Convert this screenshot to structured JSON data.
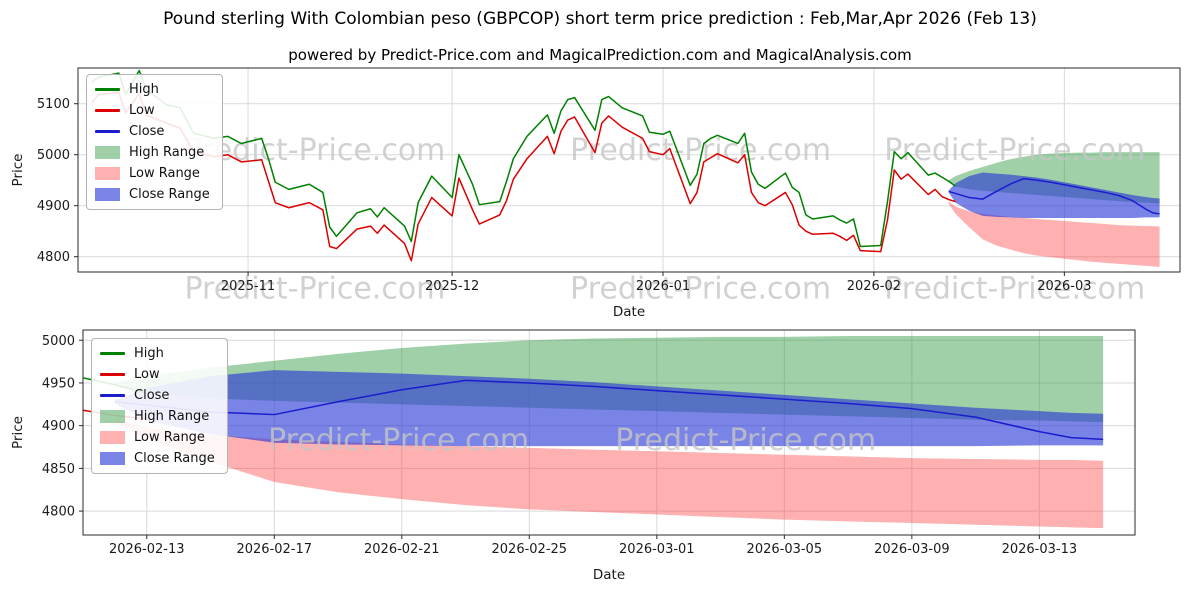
{
  "page": {
    "title": "Pound sterling With Colombian peso (GBPCOP) short term price prediction : Feb,Mar,Apr 2026 (Feb 13)",
    "subtitle": "powered by Predict-Price.com and MagicalPrediction.com and MagicalAnalysis.com",
    "watermark": "Predict-Price.com"
  },
  "colors": {
    "high": "#008000",
    "low": "#dd0000",
    "close": "#1c1ccf",
    "high_range": "rgba(45,150,60,0.45)",
    "low_range": "rgba(255,60,60,0.40)",
    "close_range": "rgba(40,55,215,0.62)",
    "grid": "#d9d9d9",
    "axis": "#2a2a2a",
    "text": "#1a1a1a",
    "watermark": "#c6c6c6"
  },
  "legend": {
    "items": [
      {
        "label": "High",
        "swatch": "line",
        "color": "high"
      },
      {
        "label": "Low",
        "swatch": "line",
        "color": "low"
      },
      {
        "label": "Close",
        "swatch": "line",
        "color": "close"
      },
      {
        "label": "High Range",
        "swatch": "patch",
        "color": "high_range"
      },
      {
        "label": "Low Range",
        "swatch": "patch",
        "color": "low_range"
      },
      {
        "label": "Close Range",
        "swatch": "patch",
        "color": "close_range"
      }
    ]
  },
  "watermarks": {
    "top": [
      {
        "xf": 0.215,
        "yf": 0.45
      },
      {
        "xf": 0.565,
        "yf": 0.45
      },
      {
        "xf": 0.85,
        "yf": 0.45
      },
      {
        "xf": 0.215,
        "yf": 1.13
      },
      {
        "xf": 0.565,
        "yf": 1.13
      },
      {
        "xf": 0.85,
        "yf": 1.13
      }
    ],
    "bottom": [
      {
        "xf": 0.3,
        "yf": 0.585
      },
      {
        "xf": 0.63,
        "yf": 0.585
      }
    ]
  },
  "chart_data": [
    {
      "type": "line",
      "name": "history-and-forecast",
      "title": "",
      "xlabel": "Date",
      "ylabel": "Price",
      "grid": true,
      "legend_position": "upper-left",
      "xlim": [
        "2025-10-07",
        "2026-03-18"
      ],
      "ylim": [
        4770,
        5170
      ],
      "x_ticks": [
        "2025-11",
        "2025-12",
        "2026-01",
        "2026-02",
        "2026-03"
      ],
      "y_ticks": [
        4800,
        4900,
        5000,
        5100
      ],
      "historical": {
        "dates": [
          "2025-10-09",
          "2025-10-10",
          "2025-10-13",
          "2025-10-14",
          "2025-10-16",
          "2025-10-17",
          "2025-10-20",
          "2025-10-22",
          "2025-10-24",
          "2025-10-27",
          "2025-10-29",
          "2025-10-31",
          "2025-11-03",
          "2025-11-04",
          "2025-11-05",
          "2025-11-07",
          "2025-11-10",
          "2025-11-12",
          "2025-11-13",
          "2025-11-14",
          "2025-11-17",
          "2025-11-19",
          "2025-11-20",
          "2025-11-21",
          "2025-11-24",
          "2025-11-25",
          "2025-11-26",
          "2025-11-28",
          "2025-12-01",
          "2025-12-02",
          "2025-12-04",
          "2025-12-05",
          "2025-12-08",
          "2025-12-09",
          "2025-12-10",
          "2025-12-12",
          "2025-12-15",
          "2025-12-16",
          "2025-12-17",
          "2025-12-18",
          "2025-12-19",
          "2025-12-22",
          "2025-12-23",
          "2025-12-24",
          "2025-12-26",
          "2025-12-29",
          "2025-12-30",
          "2026-01-01",
          "2026-01-02",
          "2026-01-05",
          "2026-01-06",
          "2026-01-07",
          "2026-01-08",
          "2026-01-09",
          "2026-01-12",
          "2026-01-13",
          "2026-01-14",
          "2026-01-15",
          "2026-01-16",
          "2026-01-19",
          "2026-01-20",
          "2026-01-21",
          "2026-01-22",
          "2026-01-23",
          "2026-01-26",
          "2026-01-27",
          "2026-01-28",
          "2026-01-29",
          "2026-01-30",
          "2026-02-02",
          "2026-02-03",
          "2026-02-04",
          "2026-02-05",
          "2026-02-06",
          "2026-02-09",
          "2026-02-10",
          "2026-02-11",
          "2026-02-12",
          "2026-02-13"
        ],
        "high": [
          5142,
          5152,
          5160,
          5118,
          5165,
          5128,
          5098,
          5092,
          5042,
          5032,
          5036,
          5022,
          5032,
          4992,
          4946,
          4932,
          4942,
          4926,
          4858,
          4840,
          4886,
          4894,
          4878,
          4896,
          4860,
          4830,
          4906,
          4958,
          4916,
          5000,
          4942,
          4902,
          4908,
          4948,
          4992,
          5036,
          5078,
          5042,
          5086,
          5108,
          5112,
          5048,
          5108,
          5114,
          5092,
          5076,
          5044,
          5040,
          5046,
          4940,
          4962,
          5022,
          5032,
          5038,
          5022,
          5042,
          4966,
          4942,
          4934,
          4964,
          4936,
          4926,
          4882,
          4874,
          4880,
          4872,
          4866,
          4874,
          4820,
          4822,
          4908,
          5006,
          4992,
          5004,
          4960,
          4964,
          4956,
          4948,
          4938
        ],
        "low": [
          5102,
          5118,
          5122,
          5082,
          5120,
          5078,
          5062,
          5052,
          5006,
          4996,
          5000,
          4986,
          4990,
          4948,
          4906,
          4896,
          4906,
          4892,
          4820,
          4816,
          4854,
          4860,
          4846,
          4862,
          4826,
          4792,
          4864,
          4916,
          4880,
          4954,
          4892,
          4864,
          4882,
          4910,
          4952,
          4992,
          5036,
          5002,
          5046,
          5068,
          5074,
          5004,
          5062,
          5076,
          5054,
          5032,
          5006,
          5000,
          5012,
          4904,
          4926,
          4986,
          4994,
          5002,
          4984,
          5000,
          4926,
          4906,
          4900,
          4926,
          4902,
          4862,
          4850,
          4844,
          4846,
          4840,
          4832,
          4842,
          4812,
          4810,
          4872,
          4970,
          4952,
          4962,
          4922,
          4932,
          4918,
          4912,
          4908
        ]
      },
      "prediction": {
        "dates": [
          "2026-02-12",
          "2026-02-13",
          "2026-02-15",
          "2026-02-17",
          "2026-02-19",
          "2026-02-21",
          "2026-02-23",
          "2026-02-25",
          "2026-02-27",
          "2026-03-01",
          "2026-03-03",
          "2026-03-05",
          "2026-03-07",
          "2026-03-09",
          "2026-03-11",
          "2026-03-13",
          "2026-03-14",
          "2026-03-15"
        ],
        "close": [
          4928,
          4924,
          4916,
          4913,
          4928,
          4942,
          4953,
          4950,
          4946,
          4941,
          4936,
          4931,
          4926,
          4920,
          4910,
          4893,
          4886,
          4884
        ],
        "high_range": {
          "upper": [
            4950,
            4958,
            4968,
            4976,
            4984,
            4991,
            4996,
            5000,
            5002,
            5003,
            5004,
            5004,
            5005,
            5005,
            5005,
            5005,
            5005,
            5005
          ],
          "lower": [
            4946,
            4938,
            4932,
            4929,
            4927,
            4925,
            4923,
            4921,
            4919,
            4917,
            4915,
            4913,
            4911,
            4909,
            4907,
            4906,
            4905,
            4904
          ]
        },
        "low_range": {
          "upper": [
            4908,
            4898,
            4889,
            4884,
            4881,
            4878,
            4876,
            4874,
            4872,
            4870,
            4868,
            4866,
            4864,
            4862,
            4861,
            4860,
            4860,
            4859
          ],
          "lower": [
            4904,
            4884,
            4858,
            4834,
            4822,
            4814,
            4807,
            4802,
            4799,
            4796,
            4793,
            4790,
            4788,
            4786,
            4784,
            4782,
            4781,
            4780
          ]
        },
        "close_range": {
          "upper": [
            4930,
            4944,
            4958,
            4965,
            4963,
            4961,
            4958,
            4955,
            4951,
            4946,
            4941,
            4936,
            4931,
            4926,
            4921,
            4917,
            4915,
            4914
          ],
          "lower": [
            4926,
            4906,
            4890,
            4880,
            4878,
            4877,
            4876,
            4876,
            4876,
            4876,
            4876,
            4876,
            4876,
            4876,
            4876,
            4877,
            4877,
            4877
          ]
        }
      }
    },
    {
      "type": "line",
      "name": "forecast-zoom",
      "title": "",
      "xlabel": "Date",
      "ylabel": "Price",
      "grid": true,
      "legend_position": "upper-left",
      "xlim": [
        "2026-02-11",
        "2026-03-16"
      ],
      "ylim": [
        4772,
        5012
      ],
      "x_ticks": [
        "2026-02-13",
        "2026-02-17",
        "2026-02-21",
        "2026-02-25",
        "2026-03-01",
        "2026-03-05",
        "2026-03-09",
        "2026-03-13"
      ],
      "y_ticks": [
        4800,
        4850,
        4900,
        4950,
        5000
      ],
      "historical": {
        "dates": [
          "2026-02-10",
          "2026-02-11",
          "2026-02-12",
          "2026-02-13"
        ],
        "high": [
          4964,
          4956,
          4948,
          4938
        ],
        "low": [
          4932,
          4918,
          4912,
          4908
        ]
      },
      "prediction": {
        "dates": [
          "2026-02-12",
          "2026-02-13",
          "2026-02-15",
          "2026-02-17",
          "2026-02-19",
          "2026-02-21",
          "2026-02-23",
          "2026-02-25",
          "2026-02-27",
          "2026-03-01",
          "2026-03-03",
          "2026-03-05",
          "2026-03-07",
          "2026-03-09",
          "2026-03-11",
          "2026-03-13",
          "2026-03-14",
          "2026-03-15"
        ],
        "close": [
          4928,
          4924,
          4916,
          4913,
          4928,
          4942,
          4953,
          4950,
          4946,
          4941,
          4936,
          4931,
          4926,
          4920,
          4910,
          4893,
          4886,
          4884
        ],
        "high_range": {
          "upper": [
            4950,
            4958,
            4968,
            4976,
            4984,
            4991,
            4996,
            5000,
            5002,
            5003,
            5004,
            5004,
            5005,
            5005,
            5005,
            5005,
            5005,
            5005
          ],
          "lower": [
            4946,
            4938,
            4932,
            4929,
            4927,
            4925,
            4923,
            4921,
            4919,
            4917,
            4915,
            4913,
            4911,
            4909,
            4907,
            4906,
            4905,
            4904
          ]
        },
        "low_range": {
          "upper": [
            4908,
            4898,
            4889,
            4884,
            4881,
            4878,
            4876,
            4874,
            4872,
            4870,
            4868,
            4866,
            4864,
            4862,
            4861,
            4860,
            4860,
            4859
          ],
          "lower": [
            4904,
            4884,
            4858,
            4834,
            4822,
            4814,
            4807,
            4802,
            4799,
            4796,
            4793,
            4790,
            4788,
            4786,
            4784,
            4782,
            4781,
            4780
          ]
        },
        "close_range": {
          "upper": [
            4930,
            4944,
            4958,
            4965,
            4963,
            4961,
            4958,
            4955,
            4951,
            4946,
            4941,
            4936,
            4931,
            4926,
            4921,
            4917,
            4915,
            4914
          ],
          "lower": [
            4926,
            4906,
            4890,
            4880,
            4878,
            4877,
            4876,
            4876,
            4876,
            4876,
            4876,
            4876,
            4876,
            4876,
            4876,
            4877,
            4877,
            4877
          ]
        }
      }
    }
  ]
}
